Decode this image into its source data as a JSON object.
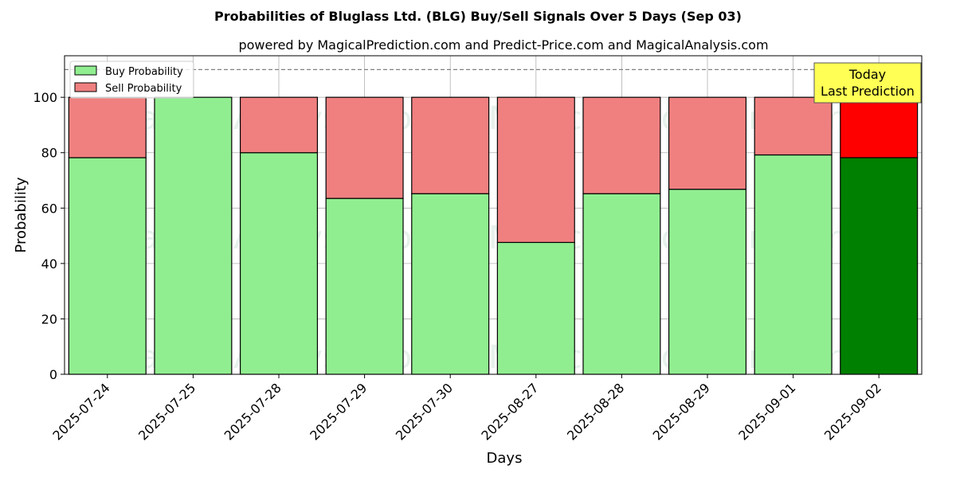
{
  "chart_data": {
    "type": "bar",
    "stacked": true,
    "title": "Probabilities of Bluglass Ltd. (BLG) Buy/Sell Signals Over 5 Days (Sep 03)",
    "subtitle": "powered by MagicalPrediction.com and Predict-Price.com and MagicalAnalysis.com",
    "xlabel": "Days",
    "ylabel": "Probability",
    "ylim": [
      0,
      115
    ],
    "yticks": [
      0,
      20,
      40,
      60,
      80,
      100
    ],
    "reference_line": 110,
    "grid": true,
    "legend_position": "top-left",
    "categories": [
      "2025-07-24",
      "2025-07-25",
      "2025-07-28",
      "2025-07-29",
      "2025-07-30",
      "2025-08-27",
      "2025-08-28",
      "2025-08-29",
      "2025-09-01",
      "2025-09-02"
    ],
    "series": [
      {
        "name": "Buy Probability",
        "color": "#90ee90",
        "last_color": "#008000",
        "values": [
          78.2,
          100,
          80.0,
          63.5,
          65.2,
          47.6,
          65.2,
          66.8,
          79.2,
          78.2
        ]
      },
      {
        "name": "Sell Probability",
        "color": "#f08080",
        "last_color": "#ff0000",
        "values": [
          21.8,
          0,
          20.0,
          36.5,
          34.8,
          52.4,
          34.8,
          33.2,
          20.8,
          21.8
        ]
      }
    ],
    "annotation": {
      "lines": [
        "Today",
        "Last Prediction"
      ],
      "background": "#ffff55"
    },
    "watermarks": [
      "MagicalAnalysis.com",
      "MagicalPrediction.com"
    ]
  }
}
